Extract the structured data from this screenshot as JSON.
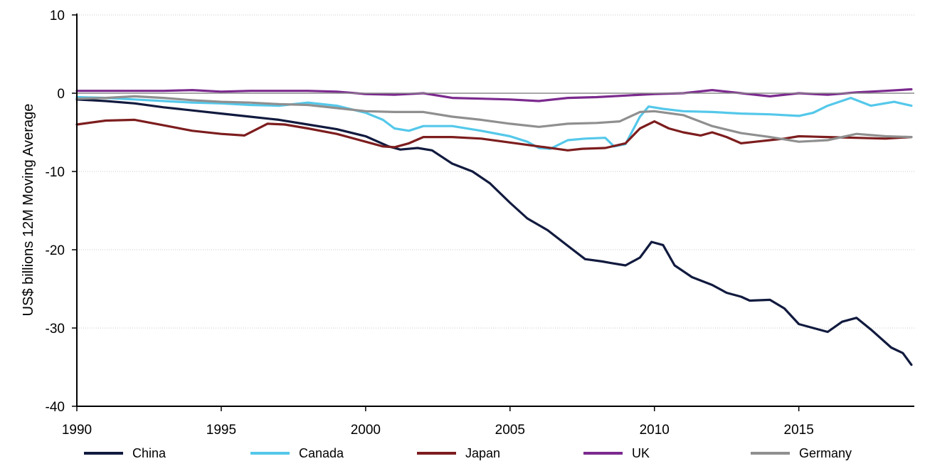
{
  "chart_data": {
    "type": "line",
    "title": "",
    "xlabel": "",
    "ylabel": "US$ billions 12M Moving Average",
    "xlim": [
      1990,
      2019
    ],
    "ylim": [
      -40,
      10
    ],
    "x_ticks": [
      "1990",
      "1995",
      "2000",
      "2005",
      "2010",
      "2015"
    ],
    "y_ticks": [
      "10",
      "0",
      "-10",
      "-20",
      "-30",
      "-40"
    ],
    "grid": "horizontal dotted",
    "legend_position": "bottom",
    "series": [
      {
        "name": "China",
        "color": "#111a3e",
        "points": [
          [
            1990,
            -0.8
          ],
          [
            1991,
            -1
          ],
          [
            1992,
            -1.3
          ],
          [
            1993,
            -1.8
          ],
          [
            1994,
            -2.2
          ],
          [
            1995,
            -2.6
          ],
          [
            1996,
            -3
          ],
          [
            1997,
            -3.4
          ],
          [
            1998,
            -4
          ],
          [
            1999,
            -4.6
          ],
          [
            2000,
            -5.5
          ],
          [
            2000.8,
            -6.8
          ],
          [
            2001.2,
            -7.2
          ],
          [
            2001.8,
            -7
          ],
          [
            2002.3,
            -7.3
          ],
          [
            2003,
            -9
          ],
          [
            2003.7,
            -10
          ],
          [
            2004.3,
            -11.5
          ],
          [
            2005,
            -14
          ],
          [
            2005.6,
            -16
          ],
          [
            2006.3,
            -17.5
          ],
          [
            2007,
            -19.5
          ],
          [
            2007.6,
            -21.2
          ],
          [
            2008.2,
            -21.5
          ],
          [
            2008.5,
            -21.7
          ],
          [
            2009,
            -22
          ],
          [
            2009.5,
            -21
          ],
          [
            2009.9,
            -19
          ],
          [
            2010.3,
            -19.4
          ],
          [
            2010.7,
            -22
          ],
          [
            2011.3,
            -23.5
          ],
          [
            2012,
            -24.5
          ],
          [
            2012.5,
            -25.5
          ],
          [
            2013,
            -26
          ],
          [
            2013.3,
            -26.5
          ],
          [
            2014,
            -26.4
          ],
          [
            2014.5,
            -27.5
          ],
          [
            2015,
            -29.5
          ],
          [
            2015.5,
            -30
          ],
          [
            2016,
            -30.5
          ],
          [
            2016.5,
            -29.2
          ],
          [
            2017,
            -28.7
          ],
          [
            2017.5,
            -30.2
          ],
          [
            2018.2,
            -32.5
          ],
          [
            2018.6,
            -33.2
          ],
          [
            2018.9,
            -34.7
          ]
        ]
      },
      {
        "name": "Canada",
        "color": "#54c8ea",
        "points": [
          [
            1990,
            -0.5
          ],
          [
            1991,
            -0.6
          ],
          [
            1992,
            -0.8
          ],
          [
            1993,
            -1
          ],
          [
            1994,
            -1.2
          ],
          [
            1995,
            -1.3
          ],
          [
            1996,
            -1.5
          ],
          [
            1997,
            -1.6
          ],
          [
            1998,
            -1.2
          ],
          [
            1999,
            -1.6
          ],
          [
            2000,
            -2.5
          ],
          [
            2000.6,
            -3.4
          ],
          [
            2001,
            -4.5
          ],
          [
            2001.5,
            -4.8
          ],
          [
            2002,
            -4.2
          ],
          [
            2003,
            -4.2
          ],
          [
            2004,
            -4.8
          ],
          [
            2005,
            -5.5
          ],
          [
            2005.6,
            -6.2
          ],
          [
            2006,
            -7
          ],
          [
            2006.4,
            -7.1
          ],
          [
            2007,
            -6
          ],
          [
            2007.6,
            -5.8
          ],
          [
            2008.3,
            -5.7
          ],
          [
            2008.6,
            -6.8
          ],
          [
            2009,
            -6.5
          ],
          [
            2009.5,
            -3
          ],
          [
            2009.8,
            -1.7
          ],
          [
            2010.3,
            -2
          ],
          [
            2011,
            -2.3
          ],
          [
            2012,
            -2.4
          ],
          [
            2013,
            -2.6
          ],
          [
            2014,
            -2.7
          ],
          [
            2015,
            -2.9
          ],
          [
            2015.5,
            -2.5
          ],
          [
            2016,
            -1.6
          ],
          [
            2016.8,
            -0.6
          ],
          [
            2017.5,
            -1.6
          ],
          [
            2018.3,
            -1.1
          ],
          [
            2018.9,
            -1.6
          ]
        ]
      },
      {
        "name": "Japan",
        "color": "#7d1d1e",
        "points": [
          [
            1990,
            -4
          ],
          [
            1991,
            -3.5
          ],
          [
            1992,
            -3.4
          ],
          [
            1993,
            -4.1
          ],
          [
            1994,
            -4.8
          ],
          [
            1995,
            -5.2
          ],
          [
            1995.8,
            -5.4
          ],
          [
            1996.6,
            -3.9
          ],
          [
            1997.2,
            -4
          ],
          [
            1998,
            -4.5
          ],
          [
            1999,
            -5.2
          ],
          [
            2000,
            -6.2
          ],
          [
            2000.6,
            -6.8
          ],
          [
            2001,
            -6.9
          ],
          [
            2001.5,
            -6.4
          ],
          [
            2002,
            -5.6
          ],
          [
            2003,
            -5.6
          ],
          [
            2004,
            -5.8
          ],
          [
            2005,
            -6.3
          ],
          [
            2006,
            -6.8
          ],
          [
            2007,
            -7.3
          ],
          [
            2007.5,
            -7.1
          ],
          [
            2008.3,
            -7
          ],
          [
            2009,
            -6.4
          ],
          [
            2009.5,
            -4.5
          ],
          [
            2010,
            -3.6
          ],
          [
            2010.5,
            -4.5
          ],
          [
            2011,
            -5
          ],
          [
            2011.6,
            -5.4
          ],
          [
            2012,
            -5
          ],
          [
            2012.5,
            -5.6
          ],
          [
            2013,
            -6.4
          ],
          [
            2013.5,
            -6.2
          ],
          [
            2014,
            -6
          ],
          [
            2014.5,
            -5.8
          ],
          [
            2015,
            -5.5
          ],
          [
            2016,
            -5.6
          ],
          [
            2017,
            -5.7
          ],
          [
            2018,
            -5.8
          ],
          [
            2018.9,
            -5.6
          ]
        ]
      },
      {
        "name": "UK",
        "color": "#7b2a8e",
        "points": [
          [
            1990,
            0.3
          ],
          [
            1991,
            0.3
          ],
          [
            1992,
            0.3
          ],
          [
            1993,
            0.3
          ],
          [
            1994,
            0.4
          ],
          [
            1995,
            0.2
          ],
          [
            1996,
            0.3
          ],
          [
            1997,
            0.3
          ],
          [
            1998,
            0.3
          ],
          [
            1999,
            0.2
          ],
          [
            2000,
            -0.1
          ],
          [
            2001,
            -0.2
          ],
          [
            2002,
            0
          ],
          [
            2003,
            -0.6
          ],
          [
            2004,
            -0.7
          ],
          [
            2005,
            -0.8
          ],
          [
            2006,
            -1
          ],
          [
            2007,
            -0.6
          ],
          [
            2008,
            -0.5
          ],
          [
            2009,
            -0.3
          ],
          [
            2010,
            -0.1
          ],
          [
            2011,
            0
          ],
          [
            2012,
            0.4
          ],
          [
            2013,
            0
          ],
          [
            2014,
            -0.4
          ],
          [
            2015,
            0
          ],
          [
            2016,
            -0.2
          ],
          [
            2017,
            0.1
          ],
          [
            2018,
            0.3
          ],
          [
            2018.9,
            0.5
          ]
        ]
      },
      {
        "name": "Germany",
        "color": "#8f8f8f",
        "points": [
          [
            1990,
            -0.7
          ],
          [
            1991,
            -0.6
          ],
          [
            1992,
            -0.4
          ],
          [
            1993,
            -0.6
          ],
          [
            1994,
            -0.9
          ],
          [
            1995,
            -1.1
          ],
          [
            1996,
            -1.2
          ],
          [
            1997,
            -1.4
          ],
          [
            1998,
            -1.5
          ],
          [
            1999,
            -1.9
          ],
          [
            2000,
            -2.3
          ],
          [
            2001,
            -2.4
          ],
          [
            2002,
            -2.4
          ],
          [
            2003,
            -3
          ],
          [
            2004,
            -3.4
          ],
          [
            2005,
            -3.9
          ],
          [
            2006,
            -4.3
          ],
          [
            2007,
            -3.9
          ],
          [
            2008,
            -3.8
          ],
          [
            2008.8,
            -3.6
          ],
          [
            2009.5,
            -2.4
          ],
          [
            2010,
            -2.3
          ],
          [
            2011,
            -2.8
          ],
          [
            2012,
            -4.2
          ],
          [
            2013,
            -5.1
          ],
          [
            2014,
            -5.6
          ],
          [
            2015,
            -6.2
          ],
          [
            2016,
            -6
          ],
          [
            2017,
            -5.2
          ],
          [
            2018,
            -5.5
          ],
          [
            2018.9,
            -5.6
          ]
        ]
      }
    ]
  }
}
